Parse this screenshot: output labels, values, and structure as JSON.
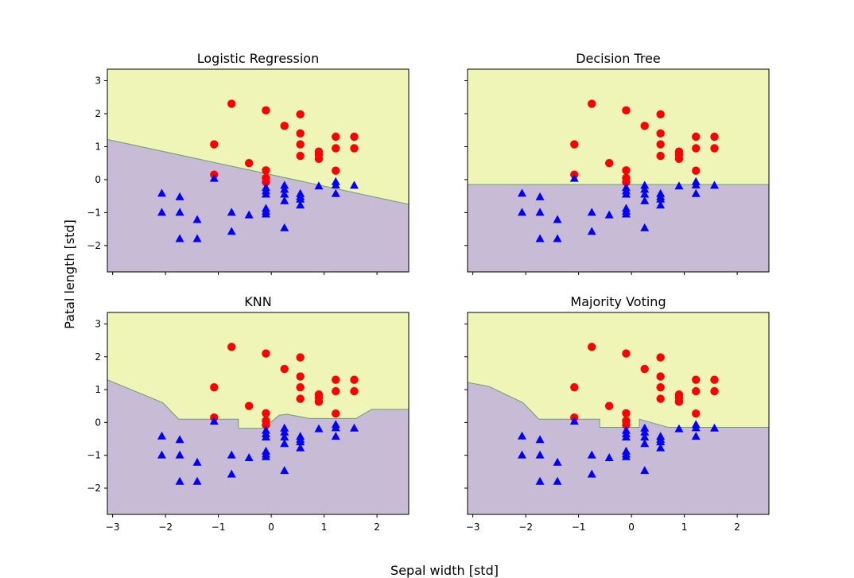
{
  "figure": {
    "xlabel": "Sepal width [std]",
    "ylabel": "Patal length [std]"
  },
  "colors": {
    "region_class_0": "#c8bbd6",
    "region_class_1": "#eff5b7",
    "boundary": "#6aa06a",
    "class_0": "#0000ff",
    "class_1": "#ff0000"
  },
  "chart_data": [
    {
      "type": "scatter",
      "title": "Logistic Regression",
      "xlim": [
        -3.1,
        2.6
      ],
      "ylim": [
        -2.8,
        3.35
      ],
      "xticks": [
        -3,
        -2,
        -1,
        0,
        1,
        2
      ],
      "yticks": [
        -2,
        -1,
        0,
        1,
        2,
        3
      ],
      "xticklabels_visible": false,
      "yticklabels_visible": true,
      "boundary": [
        [
          -3.1,
          1.22
        ],
        [
          2.6,
          -0.75
        ]
      ]
    },
    {
      "type": "scatter",
      "title": "Decision Tree",
      "xlim": [
        -3.1,
        2.6
      ],
      "ylim": [
        -2.8,
        3.35
      ],
      "xticks": [
        -3,
        -2,
        -1,
        0,
        1,
        2
      ],
      "yticks": [
        -2,
        -1,
        0,
        1,
        2,
        3
      ],
      "xticklabels_visible": false,
      "yticklabels_visible": false,
      "boundary": [
        [
          -3.1,
          -0.15
        ],
        [
          2.6,
          -0.15
        ]
      ]
    },
    {
      "type": "scatter",
      "title": "KNN",
      "xlim": [
        -3.1,
        2.6
      ],
      "ylim": [
        -2.8,
        3.35
      ],
      "xticks": [
        -3,
        -2,
        -1,
        0,
        1,
        2
      ],
      "yticks": [
        -2,
        -1,
        0,
        1,
        2,
        3
      ],
      "xticklabels_visible": true,
      "yticklabels_visible": true,
      "boundary": [
        [
          -3.1,
          1.3
        ],
        [
          -2.05,
          0.6
        ],
        [
          -1.75,
          0.1
        ],
        [
          -0.62,
          0.1
        ],
        [
          -0.62,
          -0.18
        ],
        [
          -0.15,
          -0.18
        ],
        [
          -0.05,
          -0.05
        ],
        [
          0.15,
          0.22
        ],
        [
          0.3,
          0.25
        ],
        [
          0.72,
          0.12
        ],
        [
          1.6,
          0.12
        ],
        [
          1.9,
          0.4
        ],
        [
          2.6,
          0.4
        ]
      ]
    },
    {
      "type": "scatter",
      "title": "Majority Voting",
      "xlim": [
        -3.1,
        2.6
      ],
      "ylim": [
        -2.8,
        3.35
      ],
      "xticks": [
        -3,
        -2,
        -1,
        0,
        1,
        2
      ],
      "yticks": [
        -2,
        -1,
        0,
        1,
        2,
        3
      ],
      "xticklabels_visible": true,
      "yticklabels_visible": false,
      "boundary": [
        [
          -3.1,
          1.22
        ],
        [
          -2.7,
          1.1
        ],
        [
          -2.05,
          0.6
        ],
        [
          -1.75,
          0.1
        ],
        [
          -0.6,
          0.1
        ],
        [
          -0.6,
          -0.15
        ],
        [
          0.15,
          -0.15
        ],
        [
          0.15,
          0.1
        ],
        [
          0.7,
          -0.15
        ],
        [
          2.6,
          -0.15
        ]
      ]
    }
  ],
  "points": {
    "class_1": [
      [
        -0.75,
        2.3
      ],
      [
        -0.1,
        2.1
      ],
      [
        0.55,
        1.98
      ],
      [
        0.25,
        1.63
      ],
      [
        0.55,
        1.4
      ],
      [
        1.22,
        1.3
      ],
      [
        1.57,
        1.3
      ],
      [
        -1.08,
        1.07
      ],
      [
        0.55,
        1.07
      ],
      [
        1.22,
        0.95
      ],
      [
        1.57,
        0.95
      ],
      [
        0.9,
        0.85
      ],
      [
        0.9,
        0.75
      ],
      [
        0.55,
        0.72
      ],
      [
        0.9,
        0.63
      ],
      [
        -0.42,
        0.5
      ],
      [
        -0.1,
        0.28
      ],
      [
        1.22,
        0.27
      ],
      [
        -1.08,
        0.15
      ],
      [
        -0.1,
        0.05
      ],
      [
        -0.1,
        -0.08
      ]
    ],
    "class_0": [
      [
        -1.08,
        0.03
      ],
      [
        1.22,
        -0.07
      ],
      [
        1.22,
        -0.17
      ],
      [
        1.57,
        -0.18
      ],
      [
        0.25,
        -0.18
      ],
      [
        0.9,
        -0.2
      ],
      [
        -0.1,
        -0.25
      ],
      [
        0.25,
        -0.3
      ],
      [
        -0.1,
        -0.35
      ],
      [
        -2.07,
        -0.42
      ],
      [
        0.55,
        -0.43
      ],
      [
        -0.1,
        -0.45
      ],
      [
        1.22,
        -0.43
      ],
      [
        0.25,
        -0.45
      ],
      [
        0.55,
        -0.52
      ],
      [
        -1.73,
        -0.53
      ],
      [
        0.55,
        -0.6
      ],
      [
        0.25,
        -0.65
      ],
      [
        0.55,
        -0.78
      ],
      [
        -0.1,
        -0.88
      ],
      [
        -0.1,
        -0.97
      ],
      [
        -2.07,
        -1.0
      ],
      [
        -1.73,
        -1.0
      ],
      [
        -0.75,
        -1.0
      ],
      [
        -0.42,
        -1.08
      ],
      [
        -0.1,
        -1.05
      ],
      [
        -1.4,
        -1.22
      ],
      [
        0.25,
        -1.47
      ],
      [
        -0.75,
        -1.58
      ],
      [
        -1.73,
        -1.8
      ],
      [
        -1.4,
        -1.8
      ]
    ]
  }
}
